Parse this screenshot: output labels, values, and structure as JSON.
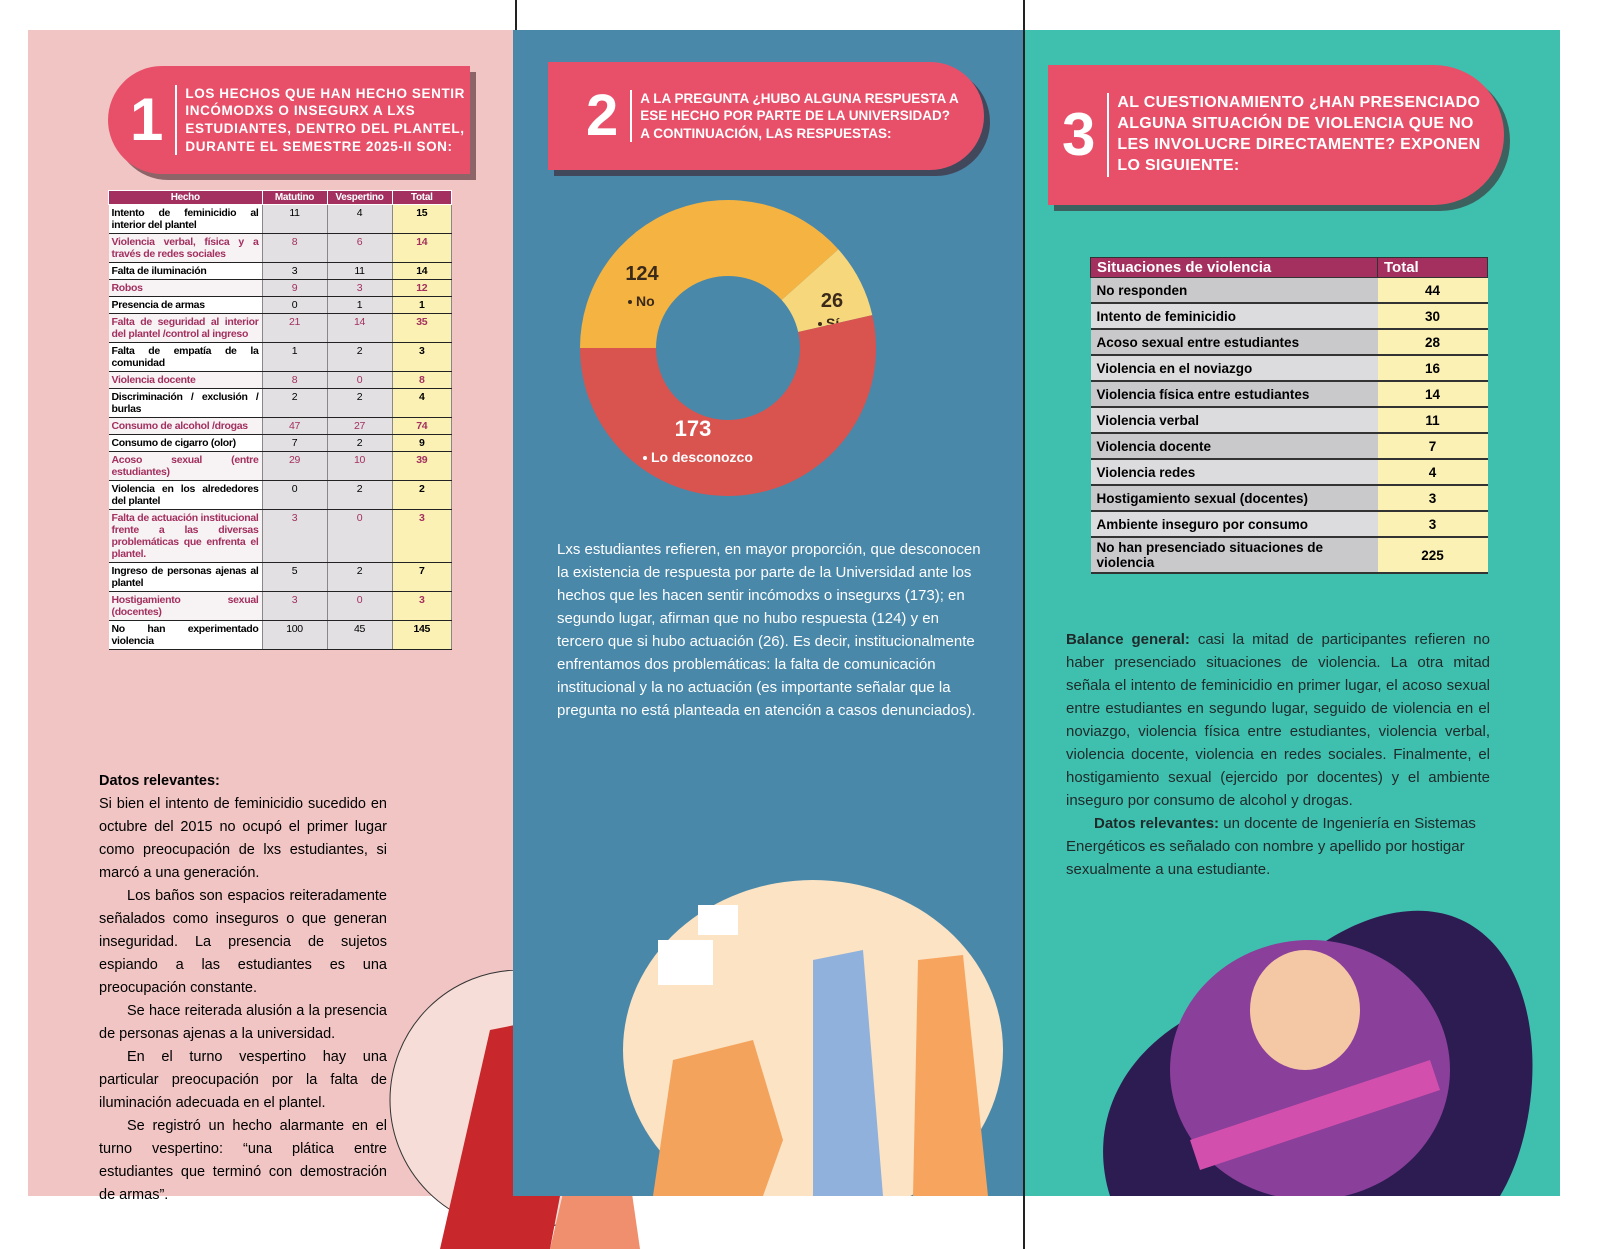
{
  "panel1": {
    "number": "1",
    "title": "LOS HECHOS QUE HAN HECHO SENTIR INCÓMODXS O INSEGURX A LXS ESTUDIANTES, DENTRO DEL PLANTEL, DURANTE EL SEMESTRE 2025-II SON:",
    "table": {
      "header": [
        "Hecho",
        "Matutino",
        "Vespertino",
        "Total"
      ],
      "rows": [
        [
          "Intento de feminicidio al interior del plantel",
          11,
          4,
          15
        ],
        [
          "Violencia verbal, física y a través de redes sociales",
          8,
          6,
          14
        ],
        [
          "Falta de iluminación",
          3,
          11,
          14
        ],
        [
          "Robos",
          9,
          3,
          12
        ],
        [
          "Presencia de armas",
          0,
          1,
          1
        ],
        [
          "Falta de seguridad al interior del plantel /control al ingreso",
          21,
          14,
          35
        ],
        [
          "Falta de empatía de la comunidad",
          1,
          2,
          3
        ],
        [
          "Violencia docente",
          8,
          0,
          8
        ],
        [
          "Discriminación / exclusión / burlas",
          2,
          2,
          4
        ],
        [
          "Consumo de alcohol /drogas",
          47,
          27,
          74
        ],
        [
          "Consumo de cigarro (olor)",
          7,
          2,
          9
        ],
        [
          "Acoso sexual (entre estudiantes)",
          29,
          10,
          39
        ],
        [
          "Violencia en los alrededores del plantel",
          0,
          2,
          2
        ],
        [
          "Falta de actuación institucional frente a las diversas problemáticas que enfrenta el plantel.",
          3,
          0,
          3
        ],
        [
          "Ingreso de personas ajenas al plantel",
          5,
          2,
          7
        ],
        [
          "Hostigamiento sexual (docentes)",
          3,
          0,
          3
        ],
        [
          "No han experimentado violencia",
          100,
          45,
          145
        ]
      ]
    },
    "notes_title": "Datos relevantes:",
    "notes": [
      "Si bien el intento de feminicidio sucedido en octubre del 2015 no ocupó el primer lugar como preocupación de lxs estudiantes, si marcó a una generación.",
      "Los baños son espacios reiteradamente señalados como inseguros o que generan inseguridad. La presencia de sujetos espiando a las estudiantes es una preocupación constante.",
      "Se hace reiterada alusión a la presencia de personas ajenas a la universidad.",
      "En el turno vespertino hay una particular preocupación por la falta de iluminación adecuada en el plantel.",
      "Se registró un hecho alarmante en el turno vespertino: “una plática entre estudiantes que terminó con demostración de armas”."
    ]
  },
  "panel2": {
    "number": "2",
    "title": "A LA PREGUNTA ¿HUBO ALGUNA RESPUESTA A ESE HECHO POR PARTE DE LA UNIVERSIDAD? A CONTINUACIÓN, LAS RESPUESTAS:",
    "text": "Lxs estudiantes refieren, en mayor proporción, que desconocen la existencia de respuesta por parte de la Universidad ante los hechos que les hacen sentir incómodxs o insegurxs (173); en segundo lugar, afirman que no hubo respuesta (124) y en tercero que si hubo actuación (26). Es decir, institucionalmente enfrentamos dos problemáticas: la falta de comunicación institucional y la no actuación (es importante señalar que la pregunta no está planteada en atención a casos denunciados)."
  },
  "chart_data": {
    "type": "pie",
    "donut": true,
    "categories": [
      "No",
      "Sí",
      "Lo desconozco"
    ],
    "values": [
      124,
      26,
      173
    ],
    "colors": [
      "#f5b342",
      "#f7d77c",
      "#d9534f"
    ]
  },
  "panel3": {
    "number": "3",
    "title": "AL CUESTIONAMIENTO ¿HAN PRESENCIADO ALGUNA SITUACIÓN DE VIOLENCIA QUE NO LES INVOLUCRE DIRECTAMENTE? EXPONEN LO SIGUIENTE:",
    "table": {
      "header": [
        "Situaciones de violencia",
        "Total"
      ],
      "rows": [
        [
          "No responden",
          44
        ],
        [
          "Intento de feminicidio",
          30
        ],
        [
          "Acoso sexual entre estudiantes",
          28
        ],
        [
          "Violencia en el noviazgo",
          16
        ],
        [
          "Violencia física entre estudiantes",
          14
        ],
        [
          "Violencia verbal",
          11
        ],
        [
          "Violencia docente",
          7
        ],
        [
          "Violencia redes",
          4
        ],
        [
          "Hostigamiento sexual (docentes)",
          3
        ],
        [
          "Ambiente inseguro por consumo",
          3
        ],
        [
          "No han presenciado situaciones de violencia",
          225
        ]
      ]
    },
    "balance_label": "Balance general:",
    "balance_text": "casi la mitad de participantes refieren no haber presenciado situaciones de violencia. La otra mitad señala el intento de feminicidio en primer lugar, el acoso sexual entre estudiantes en segundo lugar, seguido de violencia en el noviazgo, violencia física entre estudiantes, violencia verbal, violencia docente, violencia en redes sociales. Finalmente, el hostigamiento sexual (ejercido por docentes) y el ambiente inseguro por consumo de alcohol y drogas.",
    "notes_label": "Datos relevantes:",
    "notes_text": "un docente de Ingeniería en Sistemas Energéticos es señalado con nombre y apellido por hostigar sexualmente a una estudiante."
  }
}
